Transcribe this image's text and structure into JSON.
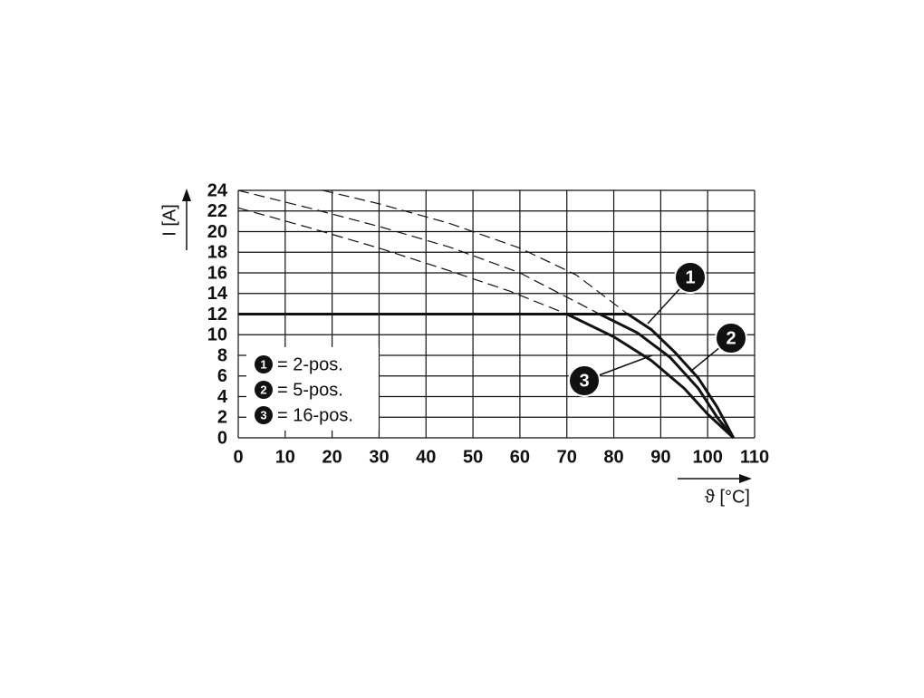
{
  "chart_data": {
    "type": "line",
    "y_label": "I [A]",
    "x_label": "ϑ [°C]",
    "xlim": [
      0,
      110
    ],
    "ylim": [
      0,
      24
    ],
    "xticks": [
      0,
      10,
      20,
      30,
      40,
      50,
      60,
      70,
      80,
      90,
      100,
      110
    ],
    "yticks": [
      0,
      2,
      4,
      6,
      8,
      10,
      12,
      14,
      16,
      18,
      20,
      22,
      24
    ],
    "grid": true,
    "series": [
      {
        "color": "#111111",
        "dashed": false,
        "x": [
          0,
          83,
          88,
          93,
          98,
          102,
          104,
          105.5
        ],
        "values": [
          12,
          12,
          10.5,
          8.3,
          5.8,
          3,
          1.3,
          0
        ]
      },
      {
        "color": "#111111",
        "dashed": false,
        "x": [
          0,
          77,
          85,
          92,
          98,
          102,
          105.5
        ],
        "values": [
          12,
          12,
          10.2,
          7.8,
          4.8,
          2,
          0
        ]
      },
      {
        "color": "#111111",
        "dashed": false,
        "x": [
          0,
          70,
          80,
          88,
          95,
          100,
          105.5
        ],
        "values": [
          12,
          12,
          9.8,
          7.5,
          4.8,
          2.3,
          0
        ]
      },
      {
        "color": "#111111",
        "dashed": true,
        "x": [
          0,
          15,
          30,
          45,
          58,
          70
        ],
        "values": [
          22.3,
          20.4,
          18.4,
          16.2,
          14.2,
          12
        ]
      },
      {
        "color": "#111111",
        "dashed": true,
        "x": [
          0,
          15,
          30,
          45,
          60,
          77
        ],
        "values": [
          24,
          22.3,
          20.5,
          18.5,
          16,
          12
        ]
      },
      {
        "color": "#111111",
        "dashed": true,
        "x": [
          18,
          30,
          45,
          60,
          72,
          83
        ],
        "values": [
          24,
          22.7,
          20.8,
          18.4,
          15.8,
          12
        ]
      }
    ],
    "legend": [
      {
        "marker": "1",
        "label": "= 2-pos."
      },
      {
        "marker": "2",
        "label": "= 5-pos."
      },
      {
        "marker": "3",
        "label": "= 16-pos."
      }
    ]
  }
}
